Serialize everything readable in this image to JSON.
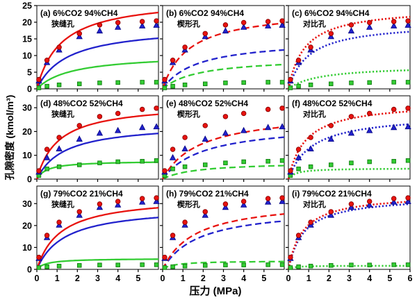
{
  "figure": {
    "ylabel": "孔隙密度 (kmol/m³)",
    "xlabel": "压力 (MPa)"
  },
  "colors": {
    "red": "#e8130f",
    "blue": "#2222cc",
    "green": "#33cc33",
    "red_edge": "#8b0000",
    "blue_edge": "#000080",
    "green_edge": "#0e7a0e",
    "axis": "#000000"
  },
  "chart_data": {
    "type": "scatter",
    "title": "",
    "xlabel": "压力 (MPa)",
    "ylabel": "孔隙密度 (kmol/m³)",
    "grid": false,
    "legend": "none",
    "xlim": [
      0,
      6
    ],
    "x": [
      0.1,
      0.5,
      1.1,
      2.1,
      3.1,
      4.0,
      5.2,
      5.9
    ],
    "rows": [
      {
        "ylim": [
          0,
          25
        ],
        "yticks": [
          0,
          5,
          10,
          15,
          20,
          25
        ],
        "scatter": {
          "red_circles": [
            2.8,
            8.6,
            12.5,
            16.6,
            19.2,
            19.9,
            20.2,
            20.4
          ],
          "blue_triangles": [
            2.4,
            7.9,
            11.7,
            15.7,
            17.4,
            18.5,
            18.9,
            19.1
          ],
          "green_squares": [
            0.3,
            0.8,
            1.2,
            1.5,
            1.8,
            1.9,
            2.0,
            2.0
          ]
        }
      },
      {
        "ylim": [
          0,
          35
        ],
        "yticks": [
          0,
          10,
          20,
          30
        ],
        "scatter": {
          "red_circles": [
            3.5,
            12.5,
            17.5,
            22.5,
            26.3,
            27.6,
            29.3,
            29.8
          ],
          "blue_triangles": [
            3.0,
            9.0,
            12.7,
            16.8,
            19.3,
            20.4,
            21.7,
            22.0
          ],
          "green_squares": [
            1.5,
            4.3,
            5.2,
            6.0,
            6.8,
            7.3,
            7.5,
            7.8
          ]
        }
      },
      {
        "ylim": [
          0,
          38
        ],
        "yticks": [
          0,
          10,
          20,
          30
        ],
        "scatter": {
          "red_circles": [
            5.5,
            15.5,
            21.5,
            26.3,
            29.8,
            31.0,
            32.3,
            32.6
          ],
          "blue_triangles": [
            5.0,
            14.5,
            20.2,
            24.7,
            28.3,
            29.4,
            30.7,
            31.0
          ],
          "green_squares": [
            0.8,
            1.2,
            1.5,
            1.8,
            2.0,
            2.0,
            2.1,
            2.1
          ]
        }
      }
    ],
    "panels": [
      {
        "id": "a",
        "row": 0,
        "col": 0,
        "title": "(a) 6%CO2 94%CH4",
        "pore": "狭缝孔",
        "curve_style": "solid",
        "xticks": [
          0,
          1,
          2,
          3,
          4,
          5
        ],
        "curves": {
          "red": {
            "model": "langmuir",
            "a": 27.5,
            "b": 1.2
          },
          "blue": {
            "model": "langmuir",
            "a": 19.0,
            "b": 1.5
          },
          "green": {
            "model": "langmuir",
            "a": 10.5,
            "b": 1.7
          }
        }
      },
      {
        "id": "b",
        "row": 0,
        "col": 1,
        "title": "(b) 6%CO2 94%CH4",
        "pore": "楔形孔",
        "curve_style": "dashed",
        "xticks": [
          0,
          1,
          2,
          3,
          4,
          5
        ],
        "curves": {
          "red": {
            "model": "langmuir",
            "a": 24.0,
            "b": 1.3
          },
          "blue": {
            "model": "langmuir",
            "a": 15.0,
            "b": 1.7
          },
          "green": {
            "model": "langmuir",
            "a": 9.5,
            "b": 1.8
          }
        }
      },
      {
        "id": "c",
        "row": 0,
        "col": 2,
        "title": "(c) 6%CO2 94%CH4",
        "pore": "对比孔",
        "curve_style": "dotted",
        "xticks": [
          0,
          1,
          2,
          3,
          4,
          5
        ],
        "curves": {
          "red": {
            "model": "langmuir",
            "a": 24.5,
            "b": 0.8
          },
          "blue": {
            "model": "langmuir",
            "a": 20.0,
            "b": 1.0
          },
          "green": {
            "model": "langmuir",
            "a": 7.0,
            "b": 1.5
          }
        }
      },
      {
        "id": "d",
        "row": 1,
        "col": 0,
        "title": "(d) 48%CO2 52%CH4",
        "pore": "狭缝孔",
        "curve_style": "solid",
        "xticks": [
          0,
          1,
          2,
          3,
          4,
          5
        ],
        "curves": {
          "red": {
            "model": "langmuir",
            "a": 32.0,
            "b": 1.05
          },
          "blue": {
            "model": "langmuir",
            "a": 23.5,
            "b": 1.35
          },
          "green": {
            "model": "langmuir",
            "a": 7.7,
            "b": 0.5
          }
        }
      },
      {
        "id": "e",
        "row": 1,
        "col": 1,
        "title": "(e) 48%CO2 52%CH4",
        "pore": "楔形孔",
        "curve_style": "dashed",
        "xticks": [
          0,
          1,
          2,
          3,
          4,
          5
        ],
        "curves": {
          "red": {
            "model": "langmuir",
            "a": 28.5,
            "b": 1.8
          },
          "blue": {
            "model": "langmuir",
            "a": 23.5,
            "b": 2.0
          },
          "green": {
            "model": "langmuir",
            "a": 7.2,
            "b": 1.6
          }
        }
      },
      {
        "id": "f",
        "row": 1,
        "col": 2,
        "title": "(f) 48%CO2 52%CH4",
        "pore": "对比孔",
        "curve_style": "dotted",
        "xticks": [
          0,
          1,
          2,
          3,
          4,
          5
        ],
        "curves": {
          "red": {
            "model": "langmuir",
            "a": 32.5,
            "b": 0.85
          },
          "blue": {
            "model": "langmuir",
            "a": 27.5,
            "b": 1.15
          },
          "green": {
            "model": "langmuir",
            "a": 4.6,
            "b": 0.35
          }
        }
      },
      {
        "id": "g",
        "row": 2,
        "col": 0,
        "title": "(g) 79%CO2 21%CH4",
        "pore": "狭缝孔",
        "curve_style": "solid",
        "xticks": [
          0,
          1,
          2,
          3,
          4,
          5
        ],
        "curves": {
          "red": {
            "model": "langmuir",
            "a": 33.5,
            "b": 1.15
          },
          "blue": {
            "model": "langmuir",
            "a": 29.0,
            "b": 1.35
          },
          "green": {
            "model": "langmuir",
            "a": 5.0,
            "b": 0.45
          }
        }
      },
      {
        "id": "h",
        "row": 2,
        "col": 1,
        "title": "(h) 79%CO2 21%CH4",
        "pore": "楔形孔",
        "curve_style": "dashed",
        "xticks": [
          0,
          1,
          2,
          3,
          4,
          5
        ],
        "curves": {
          "red": {
            "model": "langmuir",
            "a": 32.0,
            "b": 1.6
          },
          "blue": {
            "model": "langmuir",
            "a": 28.5,
            "b": 1.75
          },
          "green": {
            "model": "langmuir",
            "a": 3.9,
            "b": 0.55
          }
        }
      },
      {
        "id": "i",
        "row": 2,
        "col": 2,
        "title": "(i) 79%CO2 21%CH4",
        "pore": "对比孔",
        "curve_style": "dotted",
        "xticks": [
          0,
          1,
          2,
          3,
          4,
          5,
          6
        ],
        "curves": {
          "red": {
            "model": "langmuir",
            "a": 34.5,
            "b": 0.7
          },
          "blue": {
            "model": "langmuir",
            "a": 33.5,
            "b": 0.75
          },
          "green": {
            "model": "langmuir",
            "a": 1.7,
            "b": 0.25
          }
        }
      }
    ]
  }
}
